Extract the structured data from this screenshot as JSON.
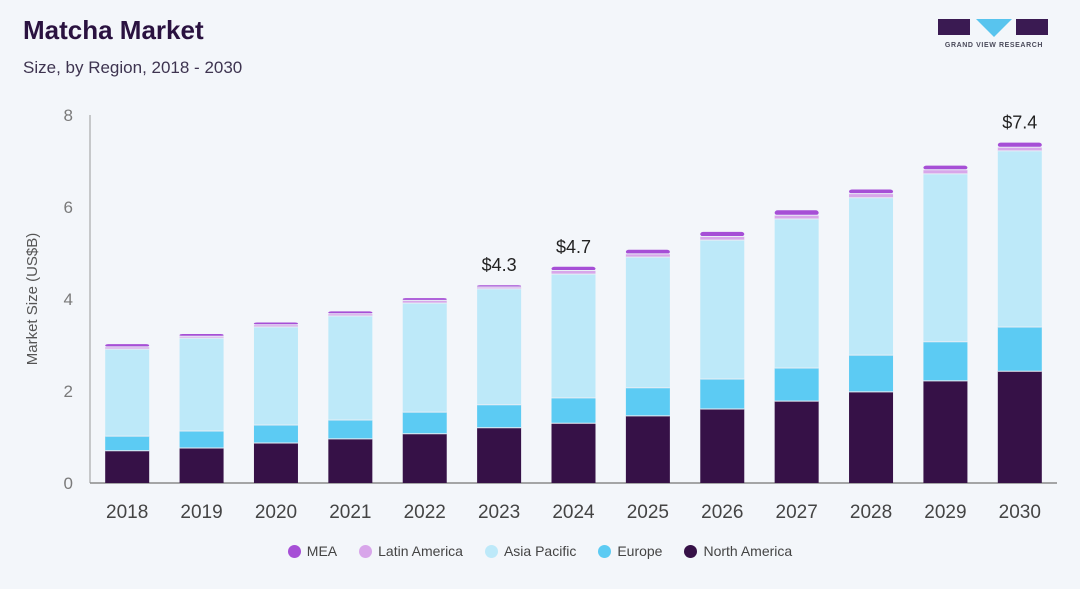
{
  "header": {
    "title": "Matcha Market",
    "subtitle": "Size, by Region, 2018 - 2030"
  },
  "logo": {
    "text": "GRAND VIEW RESEARCH"
  },
  "chart_data": {
    "type": "bar",
    "stacked": true,
    "title": "Matcha Market",
    "subtitle": "Size, by Region, 2018 - 2030",
    "xlabel": "",
    "ylabel": "Market Size (US$B)",
    "ylim": [
      0,
      8
    ],
    "yticks": [
      0,
      2,
      4,
      6,
      8
    ],
    "grid": false,
    "legend_position": "bottom",
    "categories": [
      "2018",
      "2019",
      "2020",
      "2021",
      "2022",
      "2023",
      "2024",
      "2025",
      "2026",
      "2027",
      "2028",
      "2029",
      "2030"
    ],
    "series": [
      {
        "name": "North America",
        "color": "#361147",
        "values": [
          0.7,
          0.76,
          0.87,
          0.96,
          1.07,
          1.2,
          1.3,
          1.46,
          1.61,
          1.78,
          1.98,
          2.22,
          2.43
        ]
      },
      {
        "name": "Europe",
        "color": "#5ccbf3",
        "values": [
          0.32,
          0.37,
          0.39,
          0.41,
          0.47,
          0.5,
          0.55,
          0.61,
          0.65,
          0.72,
          0.8,
          0.85,
          0.96
        ]
      },
      {
        "name": "Asia Pacific",
        "color": "#bde9f9",
        "values": [
          1.89,
          2.02,
          2.13,
          2.26,
          2.37,
          2.52,
          2.69,
          2.84,
          3.02,
          3.24,
          3.42,
          3.65,
          3.83
        ]
      },
      {
        "name": "Latin America",
        "color": "#d8a6ea",
        "values": [
          0.05,
          0.04,
          0.05,
          0.05,
          0.06,
          0.04,
          0.08,
          0.07,
          0.08,
          0.08,
          0.09,
          0.09,
          0.08
        ]
      },
      {
        "name": "MEA",
        "color": "#a64fd6",
        "values": [
          0.06,
          0.05,
          0.05,
          0.05,
          0.05,
          0.04,
          0.08,
          0.09,
          0.1,
          0.11,
          0.09,
          0.09,
          0.1
        ]
      }
    ],
    "annotations": [
      {
        "category": "2023",
        "label": "$4.3"
      },
      {
        "category": "2024",
        "label": "$4.7"
      },
      {
        "category": "2030",
        "label": "$7.4"
      }
    ]
  },
  "legend": {
    "items": [
      {
        "label": "MEA",
        "color": "#a64fd6"
      },
      {
        "label": "Latin America",
        "color": "#d8a6ea"
      },
      {
        "label": "Asia Pacific",
        "color": "#bde9f9"
      },
      {
        "label": "Europe",
        "color": "#5ccbf3"
      },
      {
        "label": "North America",
        "color": "#361147"
      }
    ]
  }
}
